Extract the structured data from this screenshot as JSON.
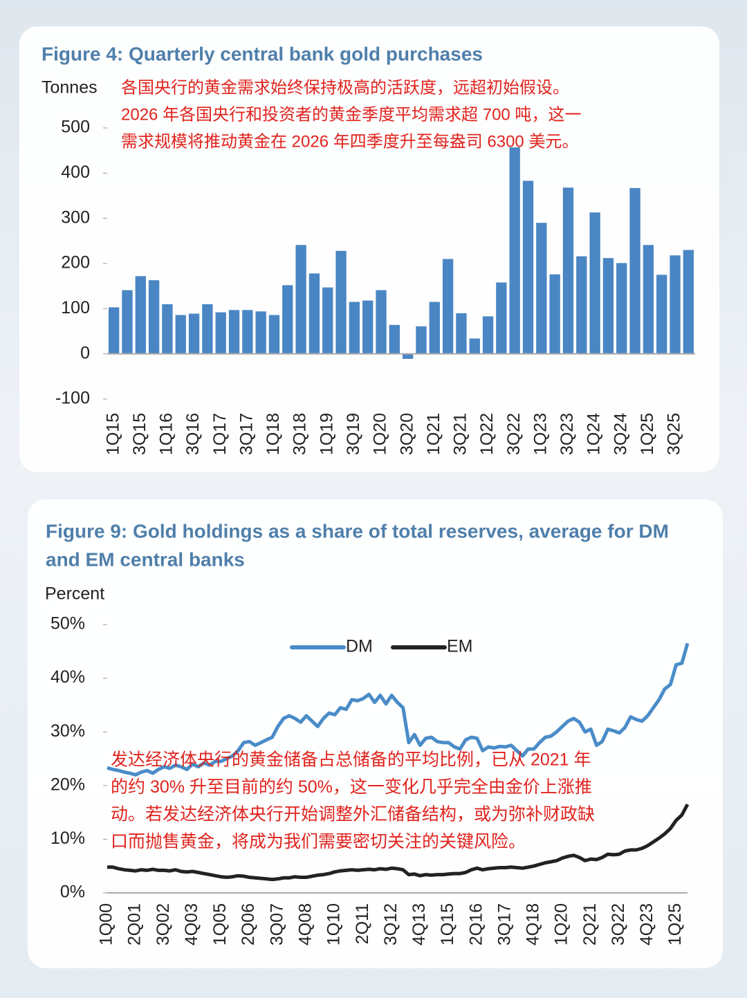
{
  "chart_data": [
    {
      "type": "bar",
      "title": "Figure 4: Quarterly central bank gold purchases",
      "y_label": "Tonnes",
      "annotation": [
        "各国央行的黄金需求始终保持极高的活跃度，远超初始假设。",
        "2026 年各国央行和投资者的黄金季度平均需求超 700 吨，这一",
        "需求规模将推动黄金在 2026 年四季度升至每盎司 6300 美元。"
      ],
      "categories": [
        "1Q15",
        null,
        "3Q15",
        null,
        "1Q16",
        null,
        "3Q16",
        null,
        "1Q17",
        null,
        "3Q17",
        null,
        "1Q18",
        null,
        "3Q18",
        null,
        "1Q19",
        null,
        "3Q19",
        null,
        "1Q20",
        null,
        "3Q20",
        null,
        "1Q21",
        null,
        "3Q21",
        null,
        "1Q22",
        null,
        "3Q22",
        null,
        "1Q23",
        null,
        "3Q23",
        null,
        "1Q24",
        null,
        "3Q24",
        null,
        "1Q25",
        null,
        "3Q25",
        null
      ],
      "values": [
        103,
        141,
        172,
        163,
        110,
        86,
        89,
        110,
        92,
        97,
        97,
        94,
        86,
        152,
        241,
        178,
        147,
        228,
        115,
        118,
        141,
        64,
        -11,
        61,
        115,
        210,
        90,
        34,
        83,
        158,
        457,
        383,
        290,
        176,
        368,
        216,
        313,
        212,
        201,
        367,
        241,
        175,
        218,
        230
      ],
      "color": "#4a86c4",
      "ylim": [
        -100,
        500
      ],
      "yticks": [
        -100,
        0,
        100,
        200,
        300,
        400,
        500
      ]
    },
    {
      "type": "line",
      "title": [
        "Figure 9: Gold holdings as a share of total reserves, average for DM",
        "and EM central banks"
      ],
      "y_label": "Percent",
      "annotation": [
        "发达经济体央行的黄金储备占总储备的平均比例，已从 2021 年",
        "的约 30% 升至目前的约 50%，这一变化几乎完全由金价上涨推",
        "动。若发达经济体央行开始调整外汇储备结构，或为弥补财政缺",
        "口而抛售黄金，将成为我们需要密切关注的关键风险。"
      ],
      "categories": [
        "1Q00",
        null,
        null,
        null,
        null,
        "2Q01",
        null,
        null,
        null,
        null,
        "3Q02",
        null,
        null,
        null,
        null,
        "4Q03",
        null,
        null,
        null,
        null,
        "1Q05",
        null,
        null,
        null,
        null,
        "2Q06",
        null,
        null,
        null,
        null,
        "3Q07",
        null,
        null,
        null,
        null,
        "4Q08",
        null,
        null,
        null,
        null,
        "1Q10",
        null,
        null,
        null,
        null,
        "2Q11",
        null,
        null,
        null,
        null,
        "3Q12",
        null,
        null,
        null,
        null,
        "4Q13",
        null,
        null,
        null,
        null,
        "1Q15",
        null,
        null,
        null,
        null,
        "2Q16",
        null,
        null,
        null,
        null,
        "3Q17",
        null,
        null,
        null,
        null,
        "4Q18",
        null,
        null,
        null,
        null,
        "1Q20",
        null,
        null,
        null,
        null,
        "2Q21",
        null,
        null,
        null,
        null,
        "3Q22",
        null,
        null,
        null,
        null,
        "4Q23",
        null,
        null,
        null,
        null,
        "1Q25",
        null,
        null
      ],
      "series": [
        {
          "name": "DM",
          "color": "#4a8cc8",
          "values": [
            23.3,
            23.0,
            22.8,
            22.5,
            22.3,
            22.0,
            22.5,
            22.8,
            22.3,
            23.0,
            23.5,
            23.2,
            23.8,
            23.5,
            23.0,
            24.0,
            23.5,
            24.2,
            23.8,
            24.5,
            24.5,
            25.0,
            25.5,
            26.5,
            28.0,
            28.2,
            27.5,
            28.0,
            28.5,
            29.0,
            31.0,
            32.5,
            33.0,
            32.5,
            31.8,
            33.0,
            32.0,
            31.0,
            32.5,
            33.5,
            33.2,
            34.5,
            34.2,
            36.0,
            35.8,
            36.2,
            37.0,
            35.5,
            36.8,
            35.2,
            36.8,
            35.5,
            34.5,
            28.0,
            29.5,
            27.5,
            28.8,
            29.0,
            28.2,
            28.0,
            28.0,
            27.2,
            26.8,
            28.5,
            29.0,
            28.8,
            26.5,
            27.2,
            27.0,
            27.3,
            27.2,
            27.5,
            26.5,
            25.5,
            26.8,
            26.8,
            28.0,
            29.0,
            29.2,
            30.0,
            31.0,
            32.0,
            32.5,
            31.8,
            30.0,
            30.5,
            27.5,
            28.2,
            30.5,
            30.2,
            29.8,
            30.8,
            32.8,
            32.3,
            32.0,
            33.0,
            34.5,
            36.0,
            38.0,
            38.8,
            42.5,
            42.8,
            46.5
          ]
        },
        {
          "name": "EM",
          "color": "#222222",
          "values": [
            4.8,
            4.8,
            4.5,
            4.3,
            4.2,
            4.1,
            4.3,
            4.2,
            4.4,
            4.2,
            4.2,
            4.1,
            4.3,
            4.0,
            3.9,
            4.0,
            3.8,
            3.6,
            3.4,
            3.2,
            3.0,
            2.9,
            3.0,
            3.2,
            3.1,
            2.9,
            2.8,
            2.7,
            2.6,
            2.5,
            2.6,
            2.8,
            2.8,
            3.0,
            2.9,
            2.9,
            3.1,
            3.3,
            3.4,
            3.6,
            3.9,
            4.1,
            4.2,
            4.3,
            4.2,
            4.3,
            4.4,
            4.3,
            4.5,
            4.4,
            4.6,
            4.5,
            4.3,
            3.4,
            3.5,
            3.2,
            3.4,
            3.3,
            3.4,
            3.4,
            3.5,
            3.6,
            3.6,
            3.8,
            4.3,
            4.6,
            4.3,
            4.5,
            4.6,
            4.7,
            4.7,
            4.8,
            4.7,
            4.6,
            4.8,
            5.0,
            5.3,
            5.6,
            5.8,
            6.0,
            6.5,
            6.8,
            7.0,
            6.6,
            6.0,
            6.3,
            6.2,
            6.6,
            7.2,
            7.1,
            7.2,
            7.8,
            8.0,
            8.0,
            8.3,
            8.8,
            9.5,
            10.2,
            11.0,
            12.0,
            13.5,
            14.5,
            16.5
          ]
        }
      ],
      "ylim": [
        0,
        50
      ],
      "yticks": [
        {
          "value": 0,
          "label": "0%"
        },
        {
          "value": 10,
          "label": "10%"
        },
        {
          "value": 20,
          "label": "20%"
        },
        {
          "value": 30,
          "label": "30%"
        },
        {
          "value": 40,
          "label": "40%"
        },
        {
          "value": 50,
          "label": "50%"
        }
      ],
      "legend": "top"
    }
  ]
}
